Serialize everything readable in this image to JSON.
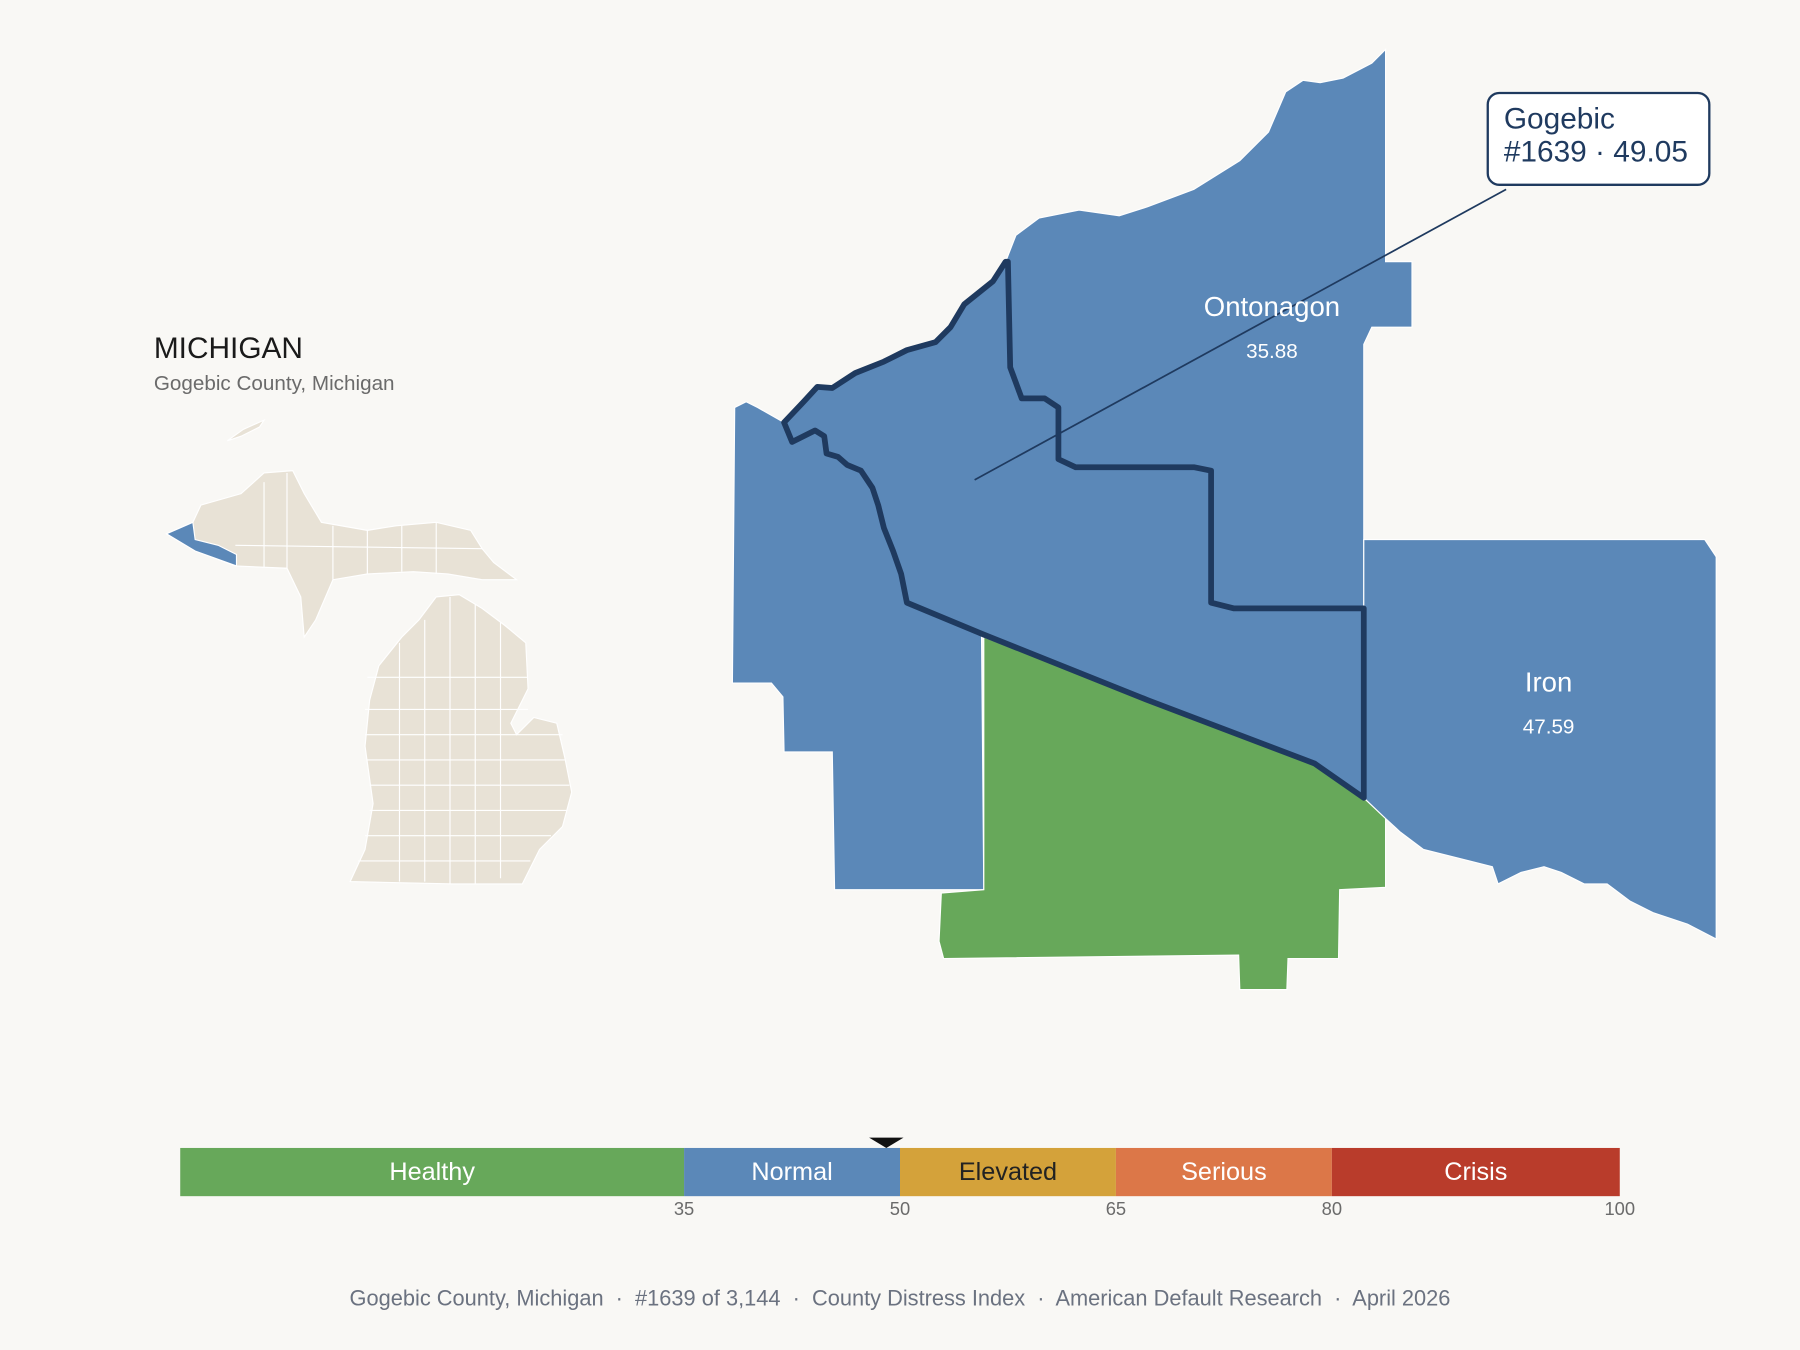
{
  "header": {
    "title": "MICHIGAN",
    "subtitle": "Gogebic County, Michigan"
  },
  "callout": {
    "name": "Gogebic",
    "line": "#1639 · 49.05"
  },
  "counties": [
    {
      "name": "Ontonagon",
      "value": 35.88
    },
    {
      "name": "Iron",
      "value": 47.59
    }
  ],
  "scale": {
    "xlim": [
      0,
      100
    ],
    "ticks": [
      35,
      50,
      65,
      80,
      100
    ],
    "marker_value": 49.05,
    "bands": [
      {
        "label": "Healthy",
        "color": "#67a85a",
        "text_color": "#ffffff"
      },
      {
        "label": "Normal",
        "color": "#5b88b8",
        "text_color": "#ffffff"
      },
      {
        "label": "Elevated",
        "color": "#d4a23a",
        "text_color": "#222222"
      },
      {
        "label": "Serious",
        "color": "#dc7748",
        "text_color": "#ffffff"
      },
      {
        "label": "Crisis",
        "color": "#b93c2b",
        "text_color": "#ffffff"
      }
    ]
  },
  "footer": "Gogebic County, Michigan  ·  #1639 of 3,144  ·  County Distress Index  ·  American Default Research  ·  April 2026"
}
